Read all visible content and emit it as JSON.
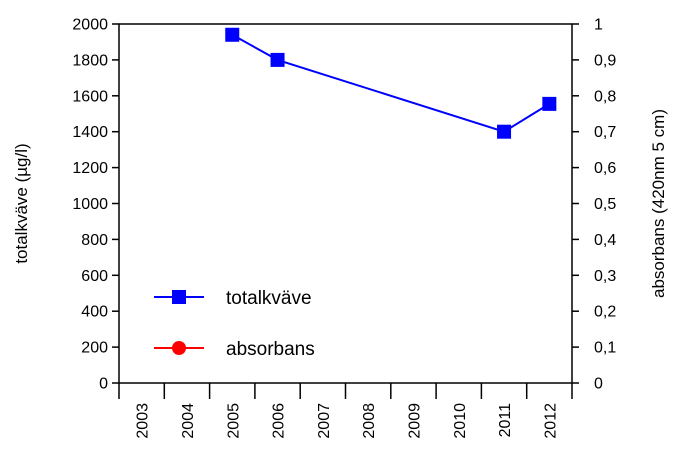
{
  "chart_data": {
    "type": "line",
    "xlabel": "",
    "ylabel": "totalkväve (µg/l)",
    "y2label": "absorbans (420nm 5 cm)",
    "categories": [
      "2003",
      "2004",
      "2005",
      "2006",
      "2007",
      "2008",
      "2009",
      "2010",
      "2011",
      "2012"
    ],
    "ylim": [
      0,
      2000
    ],
    "yticks": [
      "0",
      "200",
      "400",
      "600",
      "800",
      "1000",
      "1200",
      "1400",
      "1600",
      "1800",
      "2000"
    ],
    "y2lim": [
      0,
      1
    ],
    "y2ticks": [
      "0",
      "0,1",
      "0,2",
      "0,3",
      "0,4",
      "0,5",
      "0,6",
      "0,7",
      "0,8",
      "0,9",
      "1"
    ],
    "grid": false,
    "legend_position": "bottom-left",
    "series": [
      {
        "name": "totalkväve",
        "axis": "left",
        "color": "#0000ff",
        "marker": "square",
        "points": [
          {
            "x": "2005",
            "y": 1940
          },
          {
            "x": "2006",
            "y": 1800
          },
          {
            "x": "2011",
            "y": 1400
          },
          {
            "x": "2012",
            "y": 1555
          }
        ]
      },
      {
        "name": "absorbans",
        "axis": "right",
        "color": "#ff0000",
        "marker": "circle",
        "points": []
      }
    ]
  }
}
